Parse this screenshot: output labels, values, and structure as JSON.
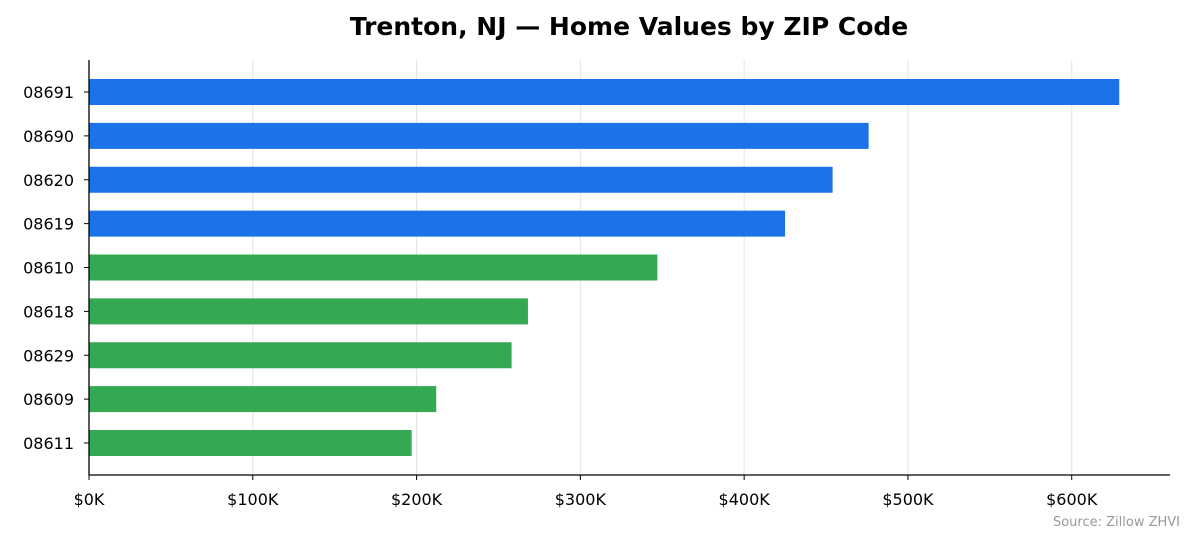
{
  "chart_data": {
    "type": "bar",
    "orientation": "horizontal",
    "title": "Trenton, NJ — Home Values by ZIP Code",
    "source": "Source: Zillow ZHVI",
    "categories": [
      "08691",
      "08690",
      "08620",
      "08619",
      "08610",
      "08618",
      "08629",
      "08609",
      "08611"
    ],
    "values": [
      629000,
      476000,
      454000,
      425000,
      347000,
      268000,
      258000,
      212000,
      197000
    ],
    "bar_colors": [
      "#1a73e8",
      "#1a73e8",
      "#1a73e8",
      "#1a73e8",
      "#34a853",
      "#34a853",
      "#34a853",
      "#34a853",
      "#34a853"
    ],
    "xlim": [
      0,
      660000
    ],
    "x_ticks": [
      0,
      100000,
      200000,
      300000,
      400000,
      500000,
      600000
    ],
    "x_tick_labels": [
      "$0K",
      "$100K",
      "$200K",
      "$300K",
      "$400K",
      "$500K",
      "$600K"
    ],
    "grid": "vertical",
    "xlabel": "",
    "ylabel": ""
  }
}
